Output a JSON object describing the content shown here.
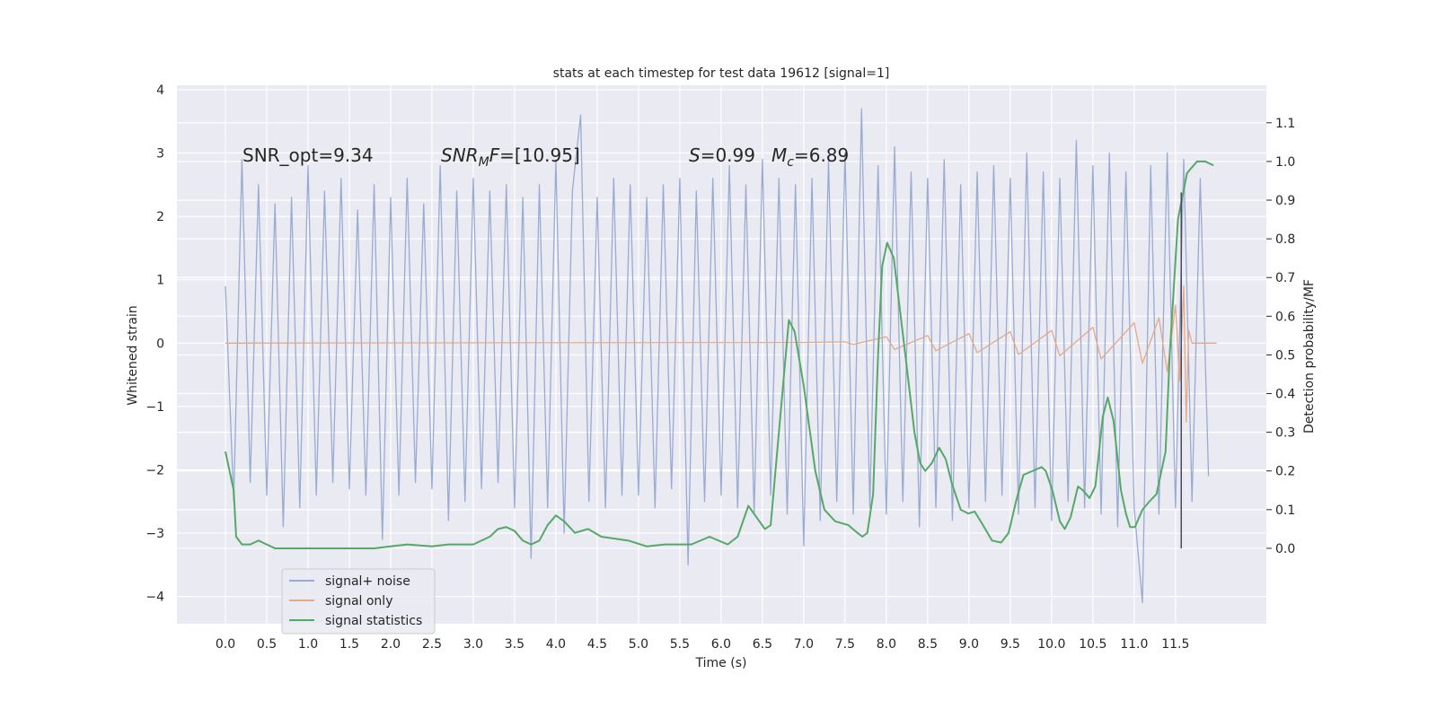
{
  "chart_data": {
    "type": "line",
    "title": "stats at each timestep for test data 19612 [signal=1]",
    "xlabel": "Time (s)",
    "ylabel": "Whitened strain",
    "y2label": "Detection probability/MF",
    "xlim": [
      -0.587,
      12.6
    ],
    "xticks": [
      {
        "value": 0,
        "label": "0.0"
      },
      0.5,
      {
        "value": 1,
        "label": "1.0"
      },
      1.5,
      {
        "value": 2,
        "label": "2.0"
      },
      2.5,
      {
        "value": 3,
        "label": "3.0"
      },
      3.5,
      {
        "value": 4,
        "label": "4.0"
      },
      4.5,
      {
        "value": 5,
        "label": "5.0"
      },
      5.5,
      {
        "value": 6,
        "label": "6.0"
      },
      6.5,
      {
        "value": 7,
        "label": "7.0"
      },
      7.5,
      {
        "value": 8,
        "label": "8.0"
      },
      8.5,
      {
        "value": 9,
        "label": "9.0"
      },
      9.5,
      {
        "value": 10,
        "label": "10.0"
      },
      10.5,
      {
        "value": 11,
        "label": "11.0"
      },
      11.5
    ],
    "ylim": [
      -4.43,
      4.07
    ],
    "yticks": [
      {
        "value": -4,
        "label": "−4"
      },
      {
        "value": -3,
        "label": "−3"
      },
      {
        "value": -2,
        "label": "−2"
      },
      {
        "value": -1,
        "label": "−1"
      },
      0,
      1,
      2,
      3,
      4
    ],
    "y2lim": [
      -0.195,
      1.197
    ],
    "y2ticks": [
      {
        "value": 0,
        "label": "0.0"
      },
      0.1,
      0.2,
      0.3,
      0.4,
      0.5,
      0.6,
      0.7,
      0.8,
      0.9,
      {
        "value": 1,
        "label": "1.0"
      },
      1.1
    ],
    "grid": true,
    "series": [
      {
        "name": "signal+ noise",
        "color": "#9aabd2",
        "x": [
          0.0,
          0.1,
          0.2,
          0.3,
          0.4,
          0.5,
          0.6,
          0.7,
          0.8,
          0.9,
          1.0,
          1.1,
          1.2,
          1.3,
          1.4,
          1.5,
          1.6,
          1.7,
          1.8,
          1.9,
          2.0,
          2.1,
          2.2,
          2.3,
          2.4,
          2.5,
          2.6,
          2.7,
          2.8,
          2.9,
          3.0,
          3.1,
          3.2,
          3.3,
          3.4,
          3.5,
          3.6,
          3.7,
          3.8,
          3.9,
          4.0,
          4.1,
          4.2,
          4.3,
          4.4,
          4.5,
          4.6,
          4.7,
          4.8,
          4.9,
          5.0,
          5.1,
          5.2,
          5.3,
          5.4,
          5.5,
          5.6,
          5.7,
          5.8,
          5.9,
          6.0,
          6.1,
          6.2,
          6.3,
          6.4,
          6.5,
          6.6,
          6.7,
          6.8,
          6.9,
          7.0,
          7.1,
          7.2,
          7.3,
          7.4,
          7.5,
          7.6,
          7.7,
          7.8,
          7.9,
          8.0,
          8.1,
          8.2,
          8.3,
          8.4,
          8.5,
          8.6,
          8.7,
          8.8,
          8.9,
          9.0,
          9.1,
          9.2,
          9.3,
          9.4,
          9.5,
          9.6,
          9.7,
          9.8,
          9.9,
          10.0,
          10.1,
          10.2,
          10.3,
          10.4,
          10.5,
          10.6,
          10.7,
          10.8,
          10.9,
          11.0,
          11.1,
          11.2,
          11.3,
          11.4,
          11.5,
          11.6,
          11.7,
          11.8,
          11.9
        ],
        "values": [
          0.9,
          -2.5,
          2.9,
          -2.2,
          2.5,
          -2.4,
          2.2,
          -2.9,
          2.3,
          -2.6,
          2.8,
          -2.4,
          2.4,
          -2.2,
          2.6,
          -2.3,
          2.1,
          -2.4,
          2.5,
          -3.1,
          2.3,
          -2.4,
          2.6,
          -2.2,
          2.2,
          -2.3,
          2.8,
          -2.8,
          2.4,
          -2.5,
          2.6,
          -2.3,
          2.4,
          -2.2,
          2.5,
          -2.6,
          2.3,
          -3.4,
          2.5,
          -2.6,
          2.9,
          -3.0,
          2.4,
          3.6,
          -2.5,
          2.3,
          -2.6,
          2.6,
          -2.4,
          2.5,
          -2.4,
          2.3,
          -2.6,
          2.5,
          -2.3,
          2.6,
          -3.5,
          2.4,
          -2.5,
          2.6,
          -2.4,
          2.8,
          -2.6,
          2.5,
          -2.7,
          2.9,
          -2.4,
          2.6,
          -2.7,
          2.5,
          -3.2,
          2.6,
          -2.8,
          2.9,
          -2.5,
          3.0,
          -2.7,
          3.7,
          -2.6,
          2.8,
          -2.7,
          3.1,
          -2.5,
          2.7,
          -2.9,
          2.6,
          -2.6,
          2.9,
          -2.8,
          2.5,
          -2.6,
          2.7,
          -2.5,
          2.8,
          -2.4,
          2.6,
          -2.7,
          3.0,
          -2.6,
          2.7,
          -2.8,
          2.6,
          -2.5,
          3.2,
          -2.6,
          2.8,
          -2.7,
          3.0,
          -2.9,
          2.7,
          -2.6,
          -4.1,
          2.8,
          -2.7,
          3.0,
          -2.6,
          2.9,
          -2.5,
          2.6,
          -2.1
        ]
      },
      {
        "name": "signal only",
        "color": "#e4a98a",
        "x": [
          0.0,
          7.0,
          7.5,
          7.6,
          8.0,
          8.1,
          8.5,
          8.6,
          9.0,
          9.1,
          9.5,
          9.6,
          10.0,
          10.1,
          10.5,
          10.6,
          11.0,
          11.1,
          11.3,
          11.4,
          11.5,
          11.55,
          11.6,
          11.63,
          11.66,
          11.7,
          12.0
        ],
        "values": [
          0,
          0.01,
          0.02,
          -0.02,
          0.1,
          -0.1,
          0.12,
          -0.12,
          0.15,
          -0.15,
          0.18,
          -0.18,
          0.2,
          -0.2,
          0.25,
          -0.25,
          0.32,
          -0.32,
          0.4,
          -0.45,
          0.6,
          -0.6,
          0.9,
          -1.25,
          0.2,
          0,
          0
        ]
      },
      {
        "name": "signal statistics",
        "color": "#55a868",
        "axis": "y2",
        "x": [
          0.0,
          0.1,
          0.13,
          0.2,
          0.3,
          0.4,
          0.5,
          0.6,
          1.0,
          1.5,
          1.8,
          2.0,
          2.2,
          2.5,
          2.7,
          3.0,
          3.2,
          3.3,
          3.4,
          3.5,
          3.6,
          3.7,
          3.8,
          3.9,
          4.0,
          4.1,
          4.23,
          4.39,
          4.55,
          4.88,
          5.1,
          5.32,
          5.64,
          5.86,
          6.08,
          6.2,
          6.33,
          6.53,
          6.6,
          6.82,
          6.89,
          7.0,
          7.14,
          7.25,
          7.38,
          7.54,
          7.65,
          7.71,
          7.77,
          7.84,
          7.9,
          7.95,
          8.01,
          8.09,
          8.23,
          8.34,
          8.41,
          8.47,
          8.55,
          8.64,
          8.72,
          8.79,
          8.9,
          8.99,
          9.07,
          9.17,
          9.28,
          9.39,
          9.48,
          9.58,
          9.66,
          9.77,
          9.88,
          9.93,
          10.01,
          10.1,
          10.16,
          10.23,
          10.32,
          10.38,
          10.46,
          10.53,
          10.62,
          10.68,
          10.75,
          10.84,
          10.9,
          10.95,
          11.01,
          11.1,
          11.18,
          11.27,
          11.38,
          11.43,
          11.53,
          11.64,
          11.76,
          11.86,
          11.96
        ],
        "values": [
          0.25,
          0.15,
          0.03,
          0.01,
          0.01,
          0.02,
          0.01,
          0.0,
          0.0,
          0.0,
          0.0,
          0.005,
          0.01,
          0.005,
          0.01,
          0.01,
          0.03,
          0.05,
          0.055,
          0.045,
          0.02,
          0.01,
          0.02,
          0.06,
          0.085,
          0.07,
          0.04,
          0.05,
          0.03,
          0.02,
          0.005,
          0.01,
          0.01,
          0.03,
          0.01,
          0.03,
          0.11,
          0.05,
          0.06,
          0.59,
          0.56,
          0.42,
          0.2,
          0.1,
          0.07,
          0.06,
          0.04,
          0.03,
          0.04,
          0.14,
          0.5,
          0.73,
          0.79,
          0.75,
          0.5,
          0.3,
          0.22,
          0.2,
          0.22,
          0.26,
          0.23,
          0.17,
          0.1,
          0.09,
          0.095,
          0.06,
          0.02,
          0.015,
          0.04,
          0.13,
          0.19,
          0.2,
          0.21,
          0.2,
          0.15,
          0.07,
          0.05,
          0.08,
          0.16,
          0.15,
          0.13,
          0.16,
          0.34,
          0.39,
          0.33,
          0.15,
          0.09,
          0.055,
          0.055,
          0.1,
          0.12,
          0.14,
          0.25,
          0.5,
          0.85,
          0.97,
          1.0,
          1.0,
          0.99
        ]
      }
    ],
    "vline": {
      "x": 11.57,
      "y2": [
        0.0,
        0.92
      ],
      "color": "#4a4a5a"
    },
    "legend": "lower left",
    "annotations": [
      [
        {
          "text": "SNR_opt=9.34"
        }
      ],
      [
        {
          "text": "SNR",
          "style": "italic"
        },
        {
          "text": "M",
          "style": "sub"
        },
        {
          "text": "F",
          "style": "italic"
        },
        {
          "text": "=[10.95]"
        }
      ],
      [
        {
          "text": "S",
          "style": "italic"
        },
        {
          "text": "=0.99"
        }
      ],
      [
        {
          "text": "M",
          "style": "italic"
        },
        {
          "text": "c",
          "style": "sub"
        },
        {
          "text": "=6.89"
        }
      ]
    ]
  }
}
